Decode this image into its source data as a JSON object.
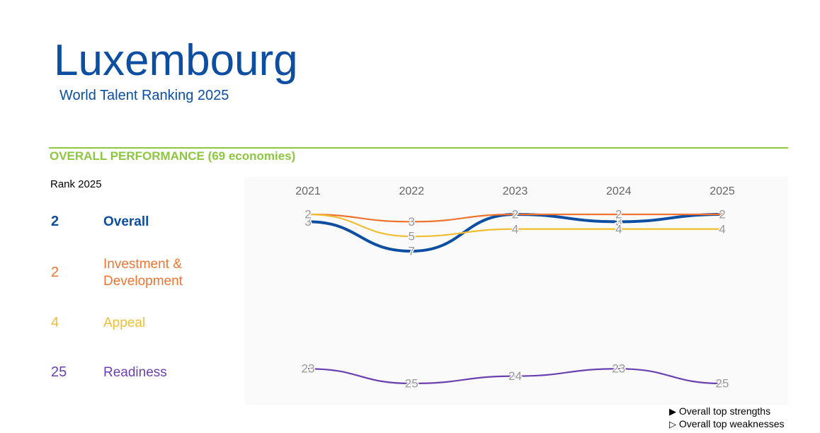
{
  "header": {
    "title": "Luxembourg",
    "subtitle": "World Talent Ranking 2025"
  },
  "section": {
    "title": "OVERALL PERFORMANCE  (69 economies)",
    "rank_label": "Rank 2025"
  },
  "chart_data": {
    "type": "line",
    "categories": [
      "2021",
      "2022",
      "2023",
      "2024",
      "2025"
    ],
    "series": [
      {
        "name": "Overall",
        "color": "#0b4ea2",
        "values": [
          3,
          7,
          2,
          3,
          2
        ]
      },
      {
        "name": "Investment & Development",
        "color": "#ef7430",
        "values": [
          2,
          3,
          2,
          2,
          2
        ]
      },
      {
        "name": "Appeal",
        "color": "#f0be32",
        "values": [
          2,
          5,
          4,
          4,
          4
        ]
      },
      {
        "name": "Readiness",
        "color": "#6b40b0",
        "values": [
          23,
          25,
          24,
          23,
          25
        ]
      }
    ],
    "ylim": [
      26,
      1
    ]
  },
  "legend": {
    "items": [
      "Overall top strengths",
      "Overall top weaknesses"
    ]
  }
}
